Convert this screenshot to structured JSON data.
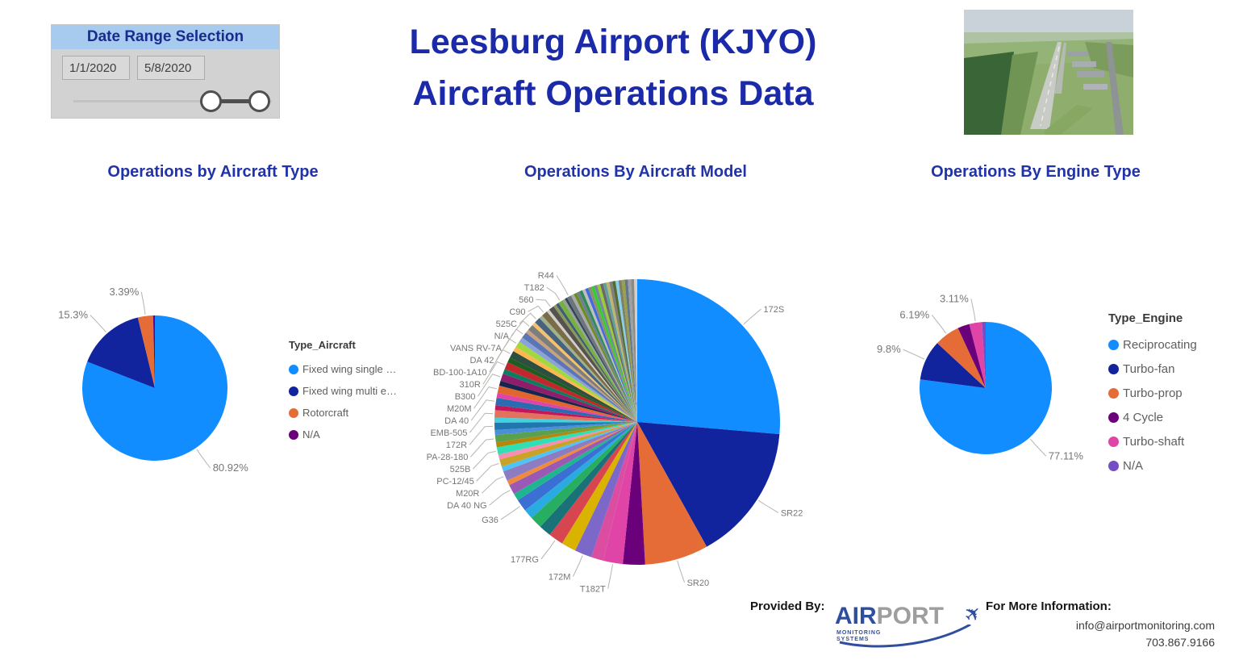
{
  "date_panel": {
    "title": "Date Range Selection",
    "start_date": "1/1/2020",
    "end_date": "5/8/2020"
  },
  "header": {
    "title_line1": "Leesburg Airport (KJYO)",
    "title_line2": "Aircraft Operations Data"
  },
  "footer": {
    "provided_by": "Provided By:",
    "logo": {
      "word1": "AIR",
      "word2": "PORT",
      "sub1": "MONITORING",
      "sub2": "SYSTEMS"
    },
    "info_title": "For More Information:",
    "email": "info@airportmonitoring.com",
    "phone": "703.867.9166"
  },
  "colors": {
    "accent_blue": "#118DFF",
    "navy": "#12239E",
    "orange": "#E66C37",
    "purple": "#6B007B",
    "pink": "#E044A7",
    "violet": "#744EC2",
    "title_blue": "#1B2AA8"
  },
  "chart_data": [
    {
      "type": "pie",
      "title": "Operations by Aircraft Type",
      "legend_title": "Type_Aircraft",
      "legend_position": "right",
      "labels": "outside-leader-lines",
      "slices": [
        {
          "name": "Fixed wing single …",
          "value": 80.92,
          "label": "80.92%",
          "color": "#118DFF"
        },
        {
          "name": "Fixed wing multi e…",
          "value": 15.3,
          "label": "15.3%",
          "color": "#12239E"
        },
        {
          "name": "Rotorcraft",
          "value": 3.39,
          "label": "3.39%",
          "color": "#E66C37"
        },
        {
          "name": "N/A",
          "value": 0.39,
          "label": null,
          "color": "#6B007B"
        }
      ]
    },
    {
      "type": "pie",
      "title": "Operations By Aircraft Model",
      "legend_position": "none",
      "labels": "outside-leader-lines",
      "slices": [
        {
          "name": "172S",
          "value": 26.39,
          "color": "#118DFF"
        },
        {
          "name": "SR22",
          "value": 15.56,
          "color": "#12239E"
        },
        {
          "name": "SR20",
          "value": 7.22,
          "color": "#E66C37"
        },
        {
          "value": 2.5,
          "color": "#6B007B"
        },
        {
          "name": "T182T",
          "value": 2.22,
          "color": "#E044A7"
        },
        {
          "value": 1.39,
          "color": "#DB4DA0"
        },
        {
          "name": "172M",
          "value": 1.94,
          "color": "#7B68C9"
        },
        {
          "value": 1.67,
          "color": "#D9B300"
        },
        {
          "name": "177RG",
          "value": 1.67,
          "color": "#D64550"
        },
        {
          "value": 1.39,
          "color": "#197278"
        },
        {
          "value": 1.39,
          "color": "#27AE60"
        },
        {
          "value": 1.11,
          "color": "#29ABE2"
        },
        {
          "name": "G36",
          "value": 1.39,
          "color": "#3B6FD4"
        },
        {
          "value": 0.83,
          "color": "#1FB58F"
        },
        {
          "name": "DA 40 NG",
          "value": 1.11,
          "color": "#9B59B6"
        },
        {
          "value": 0.56,
          "color": "#F08A3C"
        },
        {
          "name": "M20R",
          "value": 1.11,
          "color": "#8E7CC3"
        },
        {
          "value": 0.56,
          "color": "#4FC3F7"
        },
        {
          "name": "PC-12/45",
          "value": 0.83,
          "color": "#C9A227"
        },
        {
          "value": 0.56,
          "color": "#F48FB1"
        },
        {
          "name": "525B",
          "value": 0.83,
          "color": "#2FE0B5"
        },
        {
          "value": 0.56,
          "color": "#B8860B"
        },
        {
          "name": "PA-28-180",
          "value": 0.83,
          "color": "#59A14F"
        },
        {
          "value": 0.56,
          "color": "#4A90D9"
        },
        {
          "name": "172R",
          "value": 0.83,
          "color": "#2176AE"
        },
        {
          "value": 0.56,
          "color": "#45D0E0"
        },
        {
          "name": "EMB-505",
          "value": 0.83,
          "color": "#E2725B"
        },
        {
          "value": 0.56,
          "color": "#C2185B"
        },
        {
          "name": "DA 40",
          "value": 0.83,
          "color": "#2B6CB0"
        },
        {
          "value": 0.56,
          "color": "#E044A7"
        },
        {
          "name": "M20M",
          "value": 0.83,
          "color": "#E0662E"
        },
        {
          "value": 0.56,
          "color": "#14254E"
        },
        {
          "name": "B300",
          "value": 0.83,
          "color": "#8F1D6B"
        },
        {
          "value": 0.56,
          "color": "#0E7C61"
        },
        {
          "name": "310R",
          "value": 0.83,
          "color": "#C1272D"
        },
        {
          "value": 0.56,
          "color": "#1B5E20"
        },
        {
          "name": "BD-100-1A10",
          "value": 0.83,
          "color": "#2E4E3F"
        },
        {
          "value": 0.56,
          "color": "#FFB74D"
        },
        {
          "name": "DA 42",
          "value": 0.69,
          "color": "#9FD840"
        },
        {
          "value": 0.56,
          "color": "#8CA3D8"
        },
        {
          "name": "VANS RV-7A",
          "value": 0.69,
          "color": "#5B76B7"
        },
        {
          "value": 0.42,
          "color": "#C7A27C"
        },
        {
          "name": "N/A",
          "value": 0.69,
          "color": "#7D7D7D"
        },
        {
          "value": 0.42,
          "color": "#F5C26B"
        },
        {
          "name": "525C",
          "value": 0.69,
          "color": "#46627F"
        },
        {
          "value": 0.42,
          "color": "#A3B18A"
        },
        {
          "name": "C90",
          "value": 0.69,
          "color": "#7A6C46"
        },
        {
          "value": 0.33,
          "color": "#D0CFCB"
        },
        {
          "name": "560",
          "value": 0.61,
          "color": "#56524E"
        },
        {
          "value": 0.33,
          "color": "#8A9A5B"
        },
        {
          "value": 0.33,
          "color": "#3E5C76"
        },
        {
          "name": "T182",
          "value": 0.56,
          "color": "#76B041"
        },
        {
          "value": 0.28,
          "color": "#9E9E9E"
        },
        {
          "value": 0.28,
          "color": "#2F4858"
        },
        {
          "name": "R44",
          "value": 0.5,
          "color": "#6C757D"
        },
        {
          "value": 0.35,
          "color": "#A9A9A9"
        },
        {
          "value": 0.35,
          "color": "#6B8E23"
        },
        {
          "value": 0.35,
          "color": "#708090"
        },
        {
          "value": 0.35,
          "color": "#2E8B57"
        },
        {
          "value": 0.35,
          "color": "#BDBDBD"
        },
        {
          "value": 0.35,
          "color": "#4169E1"
        },
        {
          "value": 0.35,
          "color": "#8F8F6B"
        },
        {
          "value": 0.35,
          "color": "#32CD32"
        },
        {
          "value": 0.35,
          "color": "#778899"
        },
        {
          "value": 0.35,
          "color": "#9ACD32"
        },
        {
          "value": 0.35,
          "color": "#696969"
        },
        {
          "value": 0.35,
          "color": "#5F9EA0"
        },
        {
          "value": 0.35,
          "color": "#BDB76B"
        },
        {
          "value": 0.35,
          "color": "#7F7F7F"
        },
        {
          "value": 0.35,
          "color": "#556B2F"
        },
        {
          "value": 0.35,
          "color": "#87CEEB"
        },
        {
          "value": 0.35,
          "color": "#80806A"
        },
        {
          "value": 0.35,
          "color": "#98A148"
        },
        {
          "value": 0.35,
          "color": "#64748B"
        },
        {
          "value": 0.35,
          "color": "#A0A0A0"
        },
        {
          "value": 0.35,
          "color": "#8B8B83"
        },
        {
          "value": 0.35,
          "color": "#CFCFCF"
        }
      ]
    },
    {
      "type": "pie",
      "title": "Operations By Engine Type",
      "legend_title": "Type_Engine",
      "legend_position": "right",
      "labels": "outside-leader-lines",
      "slices": [
        {
          "name": "Reciprocating",
          "value": 77.11,
          "label": "77.11%",
          "color": "#118DFF"
        },
        {
          "name": "Turbo-fan",
          "value": 9.8,
          "label": "9.8%",
          "color": "#12239E"
        },
        {
          "name": "Turbo-prop",
          "value": 6.19,
          "label": "6.19%",
          "color": "#E66C37"
        },
        {
          "name": "4 Cycle",
          "value": 2.9,
          "label": null,
          "color": "#6B007B"
        },
        {
          "name": "Turbo-shaft",
          "value": 3.11,
          "label": "3.11%",
          "color": "#E044A7"
        },
        {
          "name": "N/A",
          "value": 0.89,
          "label": null,
          "color": "#744EC2"
        }
      ]
    }
  ]
}
